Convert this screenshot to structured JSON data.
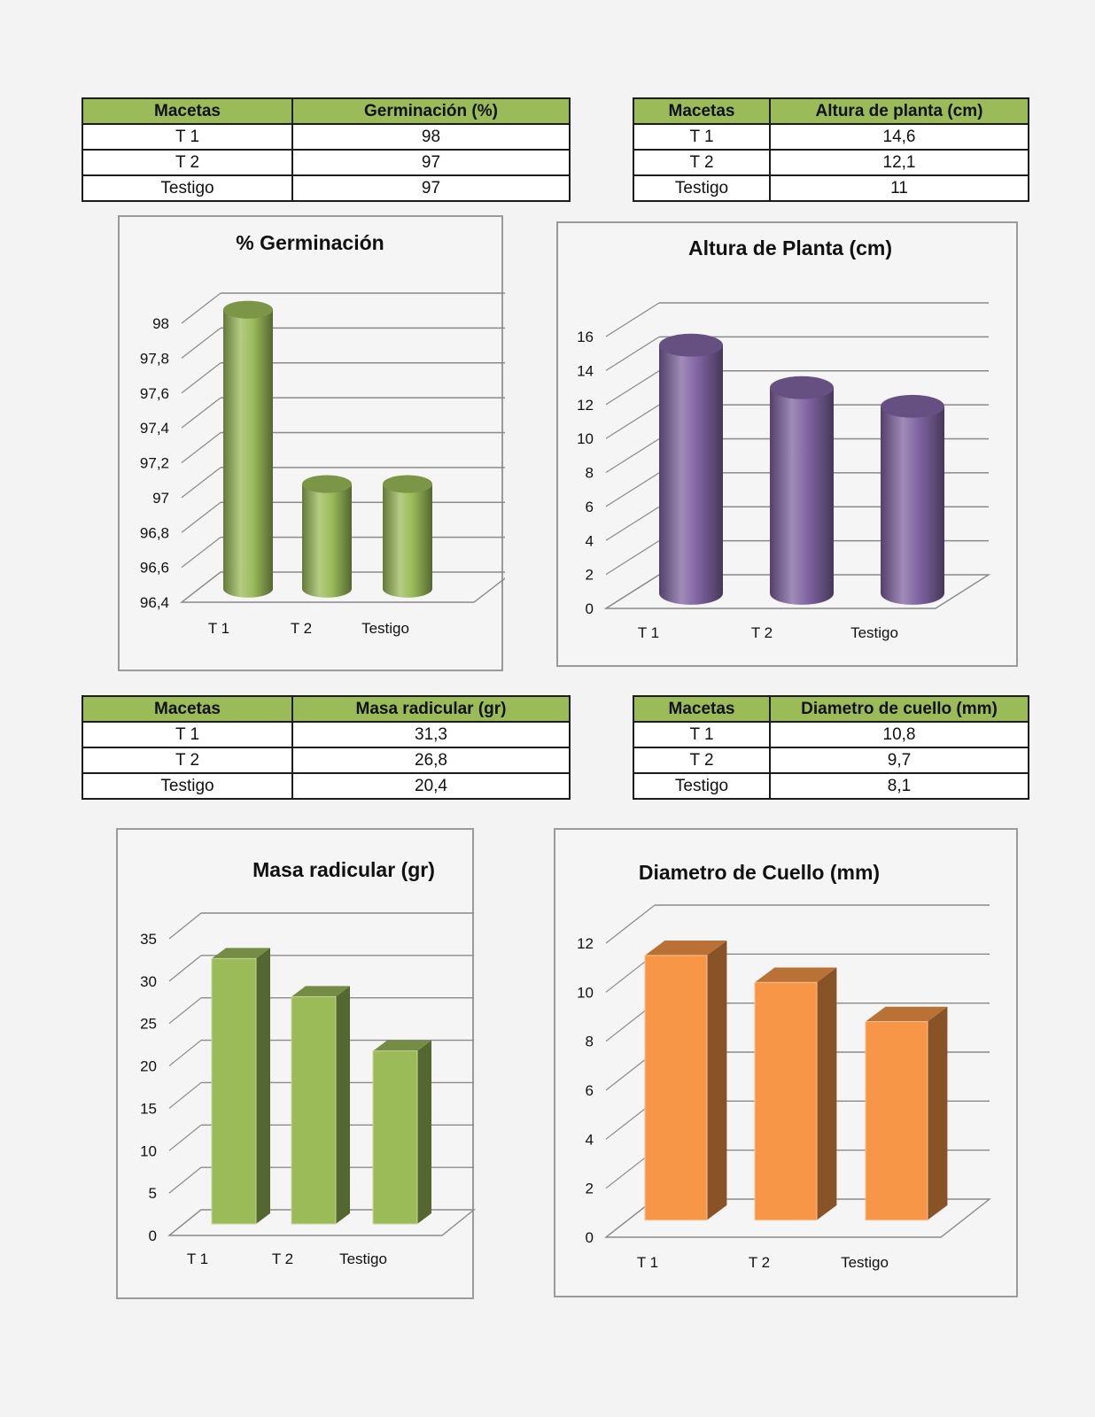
{
  "tables": [
    {
      "headers": [
        "Macetas",
        "Germinación (%)"
      ],
      "rows": [
        [
          "T 1",
          "98"
        ],
        [
          "T 2",
          "97"
        ],
        [
          "Testigo",
          "97"
        ]
      ]
    },
    {
      "headers": [
        "Macetas",
        "Altura de planta (cm)"
      ],
      "rows": [
        [
          "T 1",
          "14,6"
        ],
        [
          "T 2",
          "12,1"
        ],
        [
          "Testigo",
          "11"
        ]
      ]
    },
    {
      "headers": [
        "Macetas",
        "Masa radicular (gr)"
      ],
      "rows": [
        [
          "T 1",
          "31,3"
        ],
        [
          "T 2",
          "26,8"
        ],
        [
          "Testigo",
          "20,4"
        ]
      ]
    },
    {
      "headers": [
        "Macetas",
        "Diametro de cuello (mm)"
      ],
      "rows": [
        [
          "T 1",
          "10,8"
        ],
        [
          "T 2",
          "9,7"
        ],
        [
          "Testigo",
          "8,1"
        ]
      ]
    }
  ],
  "chart_data": [
    {
      "type": "bar",
      "shape": "cylinder",
      "title": "% Germinación",
      "categories": [
        "T 1",
        "T 2",
        "Testigo"
      ],
      "values": [
        98,
        97,
        97
      ],
      "ylim": [
        96.4,
        98
      ],
      "ticks": [
        "96,4",
        "96,6",
        "96,8",
        "97",
        "97,2",
        "97,4",
        "97,6",
        "97,8",
        "98"
      ],
      "color": "#9bbb59",
      "grid": true
    },
    {
      "type": "bar",
      "shape": "cylinder",
      "title": "Altura de Planta (cm)",
      "categories": [
        "T 1",
        "T 2",
        "Testigo"
      ],
      "values": [
        14.6,
        12.1,
        11
      ],
      "ylim": [
        0,
        16
      ],
      "ticks": [
        "0",
        "2",
        "4",
        "6",
        "8",
        "10",
        "12",
        "14",
        "16"
      ],
      "color": "#8064a2",
      "grid": true
    },
    {
      "type": "bar",
      "shape": "box",
      "title": "Masa radicular (gr)",
      "categories": [
        "T 1",
        "T 2",
        "Testigo"
      ],
      "values": [
        31.3,
        26.8,
        20.4
      ],
      "ylim": [
        0,
        35
      ],
      "ticks": [
        "0",
        "5",
        "10",
        "15",
        "20",
        "25",
        "30",
        "35"
      ],
      "color": "#9bbb59",
      "grid": true
    },
    {
      "type": "bar",
      "shape": "box",
      "title": "Diametro de Cuello (mm)",
      "categories": [
        "T 1",
        "T 2",
        "Testigo"
      ],
      "values": [
        10.8,
        9.7,
        8.1
      ],
      "ylim": [
        0,
        12
      ],
      "ticks": [
        "0",
        "2",
        "4",
        "6",
        "8",
        "10",
        "12"
      ],
      "color": "#f79646",
      "grid": true
    }
  ]
}
